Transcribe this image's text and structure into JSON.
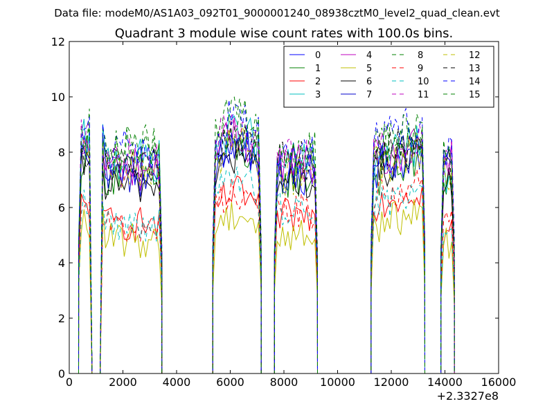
{
  "chart_data": {
    "type": "line",
    "suptitle": "Data file: modeM0/AS1A03_092T01_9000001240_08938cztM0_level2_quad_clean.evt",
    "title": "Quadrant 3 module wise count rates with 100.0s bins.",
    "xlabel": "",
    "ylabel": "",
    "xlim": [
      0,
      16000
    ],
    "ylim": [
      0,
      12
    ],
    "x_offset_label": "+2.3327e8",
    "xticks": [
      0,
      2000,
      4000,
      6000,
      8000,
      10000,
      12000,
      14000,
      16000
    ],
    "xtick_labels": [
      "0",
      "2000",
      "4000",
      "6000",
      "8000",
      "10000",
      "12000",
      "14000",
      "16000"
    ],
    "yticks": [
      0,
      2,
      4,
      6,
      8,
      10,
      12
    ],
    "ytick_labels": [
      "0",
      "2",
      "4",
      "6",
      "8",
      "10",
      "12"
    ],
    "grid": false,
    "legend_position": "top-right",
    "legend_columns": 4,
    "bin_width": 100,
    "segments": [
      {
        "start": 350,
        "end": 3450
      },
      {
        "start": 5350,
        "end": 7150
      },
      {
        "start": 7650,
        "end": 9250
      },
      {
        "start": 11250,
        "end": 13250
      },
      {
        "start": 13850,
        "end": 14350
      }
    ],
    "dropouts": [
      {
        "start": 750,
        "end": 1250
      },
      {
        "start": 7150,
        "end": 7650
      }
    ],
    "series": [
      {
        "name": "0",
        "color": "#0000ff",
        "dash": "solid",
        "levels": [
          7.6,
          7.9,
          7.2,
          7.5,
          7.6
        ]
      },
      {
        "name": "1",
        "color": "#008000",
        "dash": "solid",
        "levels": [
          7.3,
          7.7,
          7.1,
          7.2,
          7.1
        ]
      },
      {
        "name": "2",
        "color": "#ff0000",
        "dash": "solid",
        "levels": [
          5.5,
          6.1,
          5.7,
          6.2,
          5.1
        ]
      },
      {
        "name": "3",
        "color": "#00bfbf",
        "dash": "solid",
        "levels": [
          7.8,
          8.3,
          7.6,
          7.8,
          7.3
        ]
      },
      {
        "name": "4",
        "color": "#bf00bf",
        "dash": "solid",
        "levels": [
          7.5,
          8.1,
          7.6,
          7.7,
          7.6
        ]
      },
      {
        "name": "5",
        "color": "#bfbf00",
        "dash": "solid",
        "levels": [
          4.9,
          5.4,
          5.0,
          5.4,
          4.7
        ]
      },
      {
        "name": "6",
        "color": "#000000",
        "dash": "solid",
        "levels": [
          6.9,
          7.4,
          6.9,
          7.4,
          6.9
        ]
      },
      {
        "name": "7",
        "color": "#0000cd",
        "dash": "solid",
        "levels": [
          7.2,
          7.8,
          7.3,
          7.6,
          7.3
        ]
      },
      {
        "name": "8",
        "color": "#008000",
        "dash": "dashed",
        "levels": [
          8.2,
          8.6,
          7.9,
          8.2,
          8.0
        ]
      },
      {
        "name": "9",
        "color": "#ff0000",
        "dash": "dashed",
        "levels": [
          5.4,
          6.2,
          5.9,
          6.4,
          5.5
        ]
      },
      {
        "name": "10",
        "color": "#00bfbf",
        "dash": "dashed",
        "levels": [
          5.5,
          6.6,
          6.0,
          6.1,
          5.4
        ]
      },
      {
        "name": "11",
        "color": "#bf00bf",
        "dash": "dashed",
        "levels": [
          7.8,
          8.4,
          7.7,
          7.9,
          7.8
        ]
      },
      {
        "name": "12",
        "color": "#bfbf00",
        "dash": "dashed",
        "levels": [
          7.4,
          7.9,
          7.2,
          7.6,
          7.4
        ]
      },
      {
        "name": "13",
        "color": "#000000",
        "dash": "dashed",
        "levels": [
          7.6,
          8.1,
          7.6,
          7.9,
          7.5
        ]
      },
      {
        "name": "14",
        "color": "#0000ff",
        "dash": "dashed",
        "levels": [
          8.1,
          8.8,
          7.8,
          8.5,
          8.2
        ]
      },
      {
        "name": "15",
        "color": "#008000",
        "dash": "dashed",
        "levels": [
          8.3,
          8.9,
          8.0,
          8.3,
          8.0
        ]
      }
    ]
  }
}
